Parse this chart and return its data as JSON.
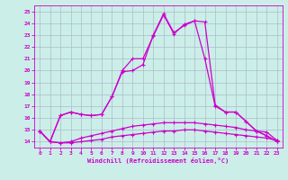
{
  "xlabel": "Windchill (Refroidissement éolien,°C)",
  "x": [
    0,
    1,
    2,
    3,
    4,
    5,
    6,
    7,
    8,
    9,
    10,
    11,
    12,
    13,
    14,
    15,
    16,
    17,
    18,
    19,
    20,
    21,
    22,
    23
  ],
  "line1": [
    14.9,
    14.0,
    13.9,
    13.9,
    14.0,
    14.1,
    14.2,
    14.4,
    14.5,
    14.6,
    14.7,
    14.8,
    14.9,
    14.9,
    15.0,
    15.0,
    14.9,
    14.8,
    14.7,
    14.6,
    14.5,
    14.4,
    14.3,
    14.1
  ],
  "line2": [
    14.9,
    14.0,
    13.9,
    14.0,
    14.3,
    14.5,
    14.7,
    14.9,
    15.1,
    15.3,
    15.4,
    15.5,
    15.6,
    15.6,
    15.6,
    15.6,
    15.5,
    15.4,
    15.3,
    15.2,
    15.0,
    14.9,
    14.8,
    14.1
  ],
  "line3": [
    14.9,
    14.0,
    16.2,
    16.5,
    16.3,
    16.2,
    16.3,
    17.8,
    19.9,
    20.0,
    20.5,
    23.0,
    24.8,
    23.2,
    23.8,
    24.2,
    21.0,
    17.0,
    16.5,
    16.5,
    15.7,
    14.9,
    14.5,
    14.0
  ],
  "line4": [
    14.9,
    14.0,
    16.2,
    16.5,
    16.3,
    16.2,
    16.3,
    17.8,
    20.0,
    21.0,
    21.0,
    22.9,
    24.7,
    23.1,
    23.9,
    24.2,
    24.1,
    17.1,
    16.5,
    16.5,
    15.7,
    14.9,
    14.5,
    14.0
  ],
  "bg_color": "#cceee8",
  "line_color": "#cc00cc",
  "grid_color": "#aabbcc",
  "ylim": [
    13.5,
    25.5
  ],
  "yticks": [
    14,
    15,
    16,
    17,
    18,
    19,
    20,
    21,
    22,
    23,
    24,
    25
  ],
  "xticks": [
    0,
    1,
    2,
    3,
    4,
    5,
    6,
    7,
    8,
    9,
    10,
    11,
    12,
    13,
    14,
    15,
    16,
    17,
    18,
    19,
    20,
    21,
    22,
    23
  ]
}
